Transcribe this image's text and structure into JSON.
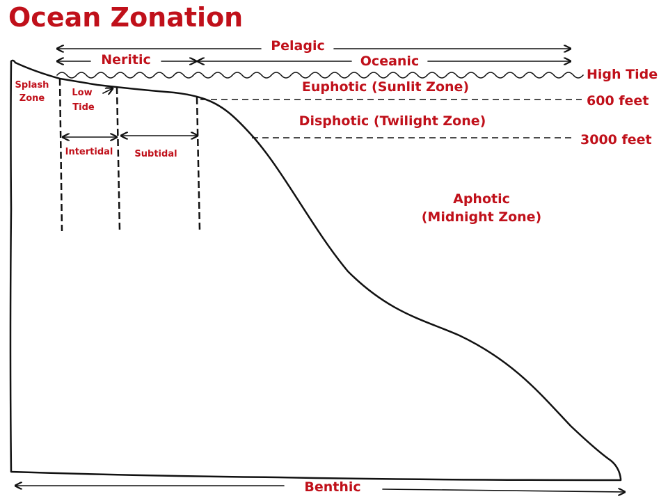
{
  "title": "Ocean Zonation",
  "colors": {
    "label": "#c0101a",
    "line": "#111111",
    "background": "#ffffff"
  },
  "horizontal_zones": {
    "pelagic": "Pelagic",
    "neritic": "Neritic",
    "oceanic": "Oceanic",
    "benthic": "Benthic"
  },
  "depth_zones": {
    "euphotic": "Euphotic (Sunlit Zone)",
    "disphotic": "Disphotic (Twilight Zone)",
    "aphotic_line1": "Aphotic",
    "aphotic_line2": "(Midnight Zone)"
  },
  "depth_markers": {
    "high_tide": "High Tide",
    "feet_600": "600 feet",
    "feet_3000": "3000 feet"
  },
  "shore_zones": {
    "splash_line1": "Splash",
    "splash_line2": "Zone",
    "low_tide_line1": "Low",
    "low_tide_line2": "Tide",
    "intertidal": "Intertidal",
    "subtidal": "Subtidal"
  }
}
